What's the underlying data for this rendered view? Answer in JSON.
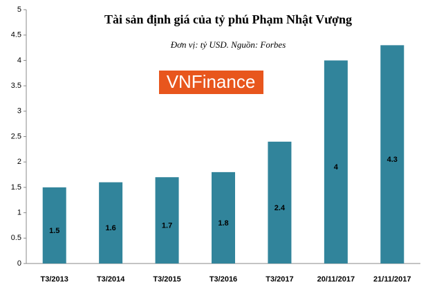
{
  "chart_data": {
    "type": "bar",
    "title": "Tài sản định giá của tỷ phú Phạm Nhật Vượng",
    "subtitle": "Đơn vị: tỷ USD. Nguồn: Forbes",
    "watermark": "VNFinance",
    "categories": [
      "T3/2013",
      "T3/2014",
      "T3/2015",
      "T3/2016",
      "T3/2017",
      "20/11/2017",
      "21/11/2017"
    ],
    "values": [
      1.5,
      1.6,
      1.7,
      1.8,
      2.4,
      4,
      4.3
    ],
    "color": "#31849b",
    "ylim": [
      0,
      5
    ],
    "yticks": [
      0,
      0.5,
      1,
      1.5,
      2,
      2.5,
      3,
      3.5,
      4,
      4.5,
      5
    ],
    "grid": false
  }
}
